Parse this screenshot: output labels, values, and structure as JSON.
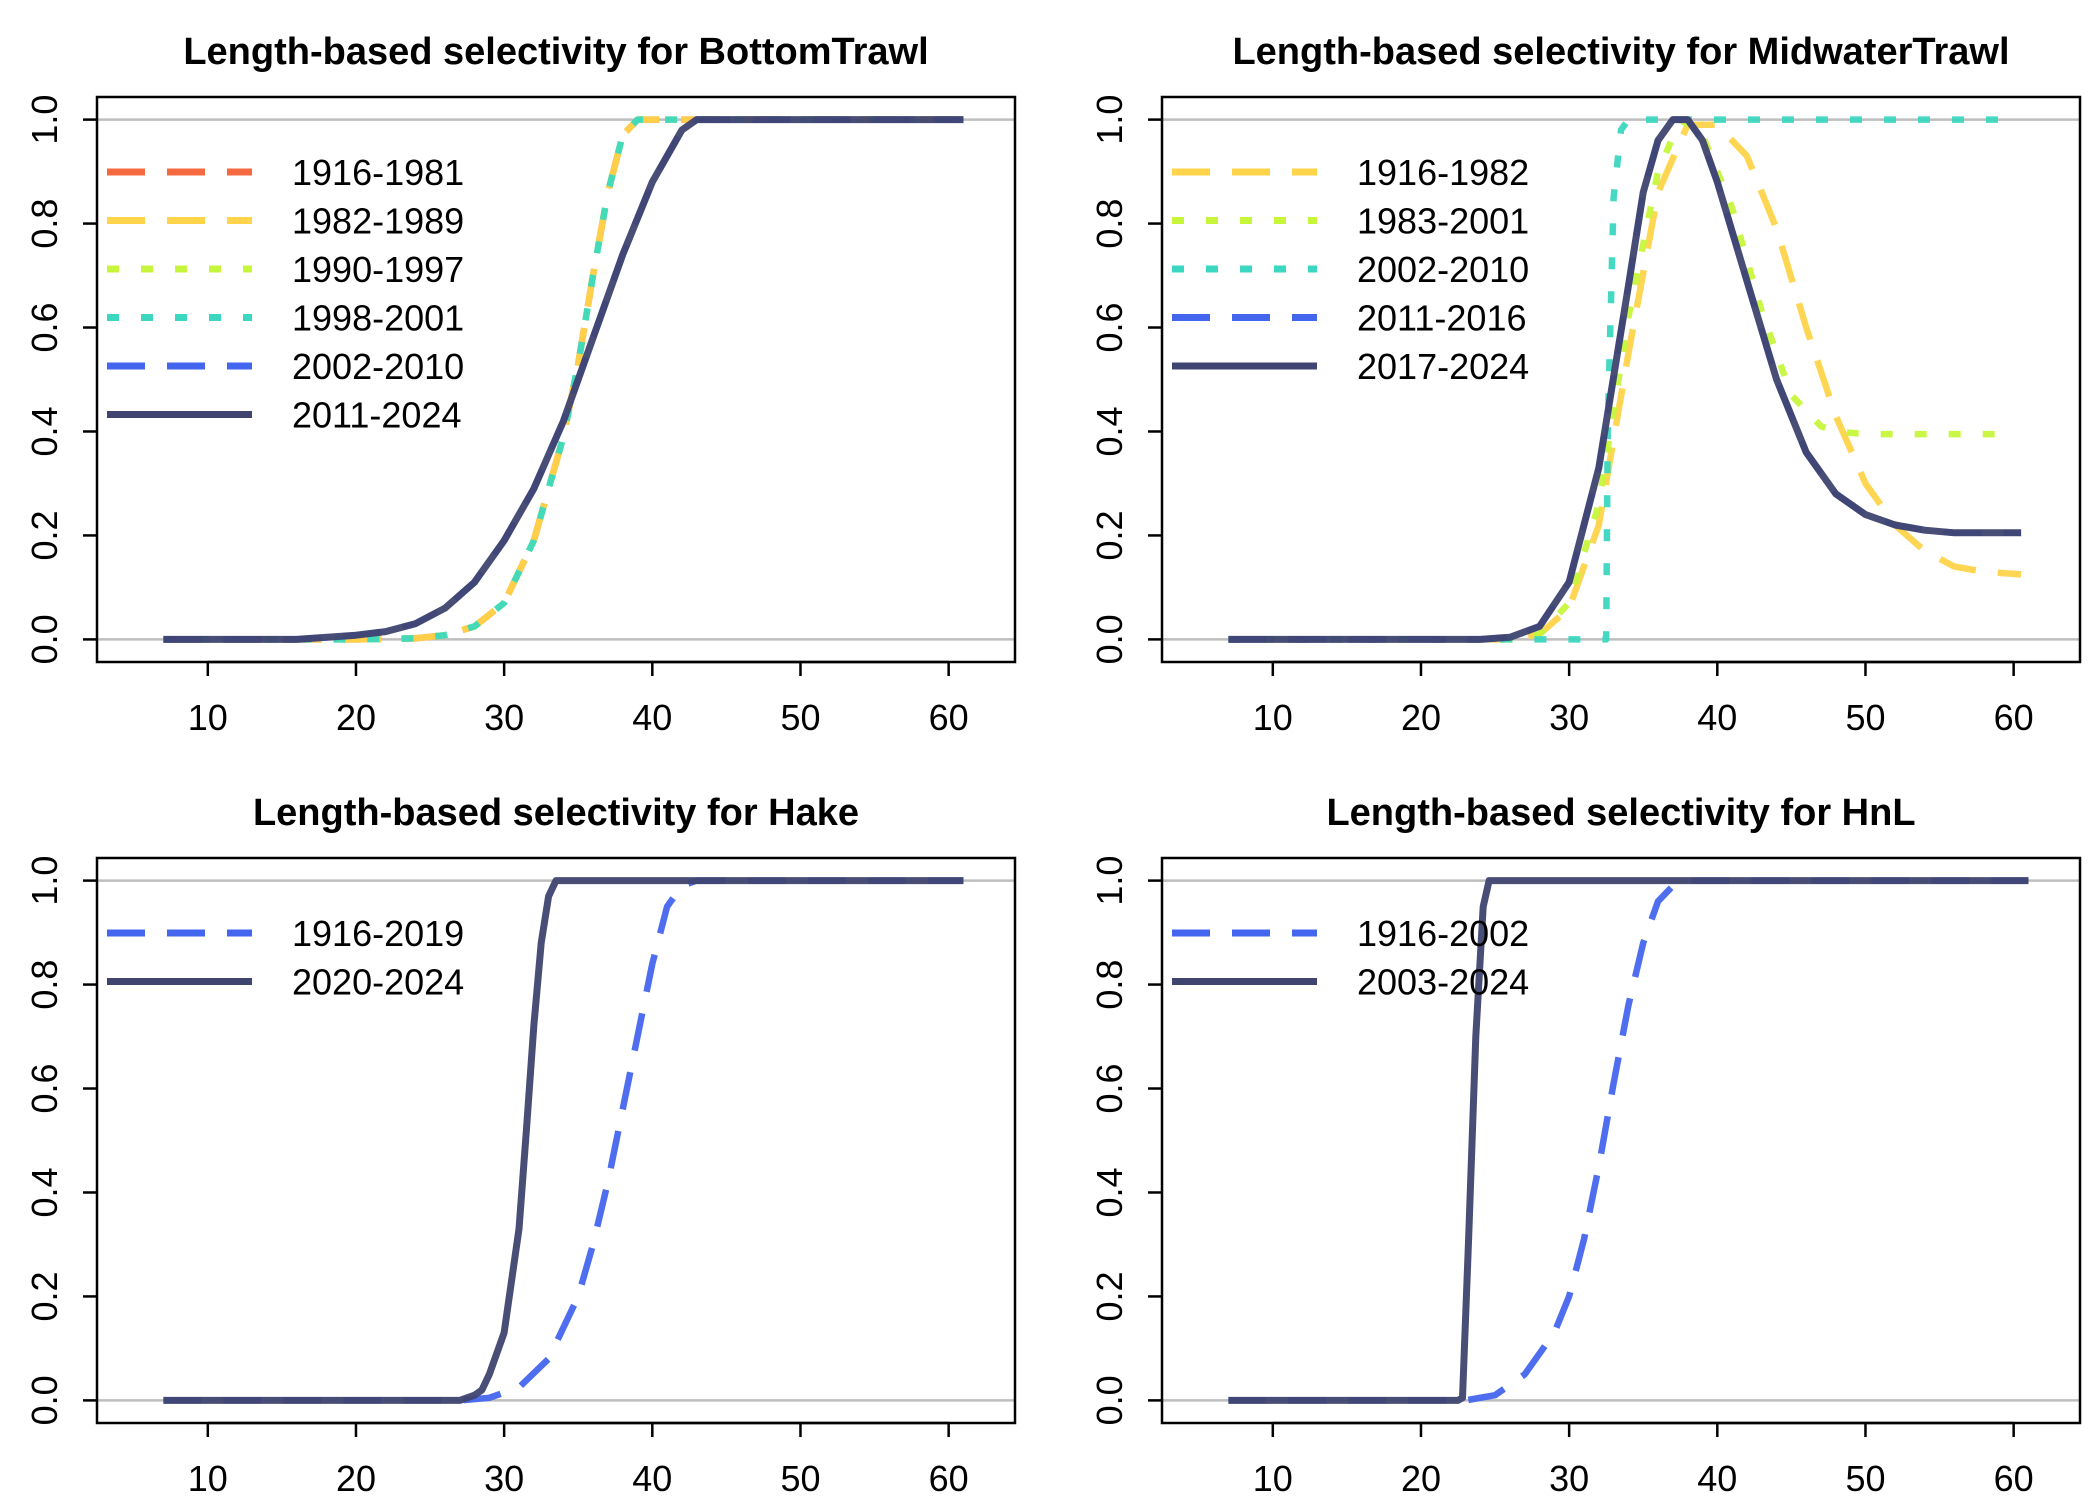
{
  "chart_data": [
    {
      "type": "line",
      "title": "Length-based selectivity for BottomTrawl",
      "xlabel": "",
      "ylabel": "",
      "xlim": [
        5,
        62
      ],
      "ylim": [
        0,
        1
      ],
      "xticks": [
        "10",
        "20",
        "30",
        "40",
        "50",
        "60"
      ],
      "yticks": [
        "0.0",
        "0.2",
        "0.4",
        "0.6",
        "0.8",
        "1.0"
      ],
      "grid": "horizontal reference lines at 0 and 1",
      "legend_position": "top-left",
      "series": [
        {
          "name": "1916-1981",
          "color": "#F4693F",
          "dash": "long",
          "x": [
            7,
            20,
            24,
            26,
            28,
            30,
            32,
            34,
            35,
            36,
            37,
            38,
            39,
            40,
            41,
            61
          ],
          "y": [
            0,
            0,
            0.002,
            0.008,
            0.025,
            0.07,
            0.19,
            0.39,
            0.53,
            0.7,
            0.86,
            0.97,
            1.0,
            1.0,
            1.0,
            1.0
          ]
        },
        {
          "name": "1982-1989",
          "color": "#FFD44A",
          "dash": "long",
          "x": [
            7,
            20,
            24,
            26,
            28,
            30,
            32,
            34,
            35,
            36,
            37,
            38,
            39,
            40,
            41,
            61
          ],
          "y": [
            0,
            0,
            0.002,
            0.008,
            0.025,
            0.07,
            0.19,
            0.39,
            0.53,
            0.7,
            0.86,
            0.97,
            1.0,
            1.0,
            1.0,
            1.0
          ]
        },
        {
          "name": "1990-1997",
          "color": "#C7F53B",
          "dash": "dot",
          "x": [
            7,
            20,
            24,
            26,
            28,
            30,
            32,
            34,
            35,
            36,
            37,
            38,
            39,
            40,
            41,
            61
          ],
          "y": [
            0,
            0,
            0.002,
            0.008,
            0.025,
            0.07,
            0.19,
            0.39,
            0.53,
            0.7,
            0.86,
            0.97,
            1.0,
            1.0,
            1.0,
            1.0
          ]
        },
        {
          "name": "1998-2001",
          "color": "#3BD7C0",
          "dash": "dot",
          "x": [
            7,
            20,
            24,
            26,
            28,
            30,
            32,
            34,
            35,
            36,
            37,
            38,
            39,
            40,
            41,
            61
          ],
          "y": [
            0,
            0,
            0.002,
            0.008,
            0.025,
            0.07,
            0.19,
            0.39,
            0.53,
            0.7,
            0.86,
            0.97,
            1.0,
            1.0,
            1.0,
            1.0
          ]
        },
        {
          "name": "2002-2010",
          "color": "#4466EE",
          "dash": "long",
          "x": [
            7,
            16,
            20,
            22,
            24,
            26,
            28,
            30,
            32,
            34,
            36,
            38,
            40,
            42,
            43,
            61
          ],
          "y": [
            0,
            0,
            0.008,
            0.015,
            0.03,
            0.06,
            0.11,
            0.19,
            0.29,
            0.42,
            0.58,
            0.74,
            0.88,
            0.98,
            1.0,
            1.0
          ]
        },
        {
          "name": "2011-2024",
          "color": "#3F4470",
          "dash": "solid",
          "x": [
            7,
            16,
            20,
            22,
            24,
            26,
            28,
            30,
            32,
            34,
            36,
            38,
            40,
            42,
            43,
            61
          ],
          "y": [
            0,
            0,
            0.008,
            0.015,
            0.03,
            0.06,
            0.11,
            0.19,
            0.29,
            0.42,
            0.58,
            0.74,
            0.88,
            0.98,
            1.0,
            1.0
          ]
        }
      ]
    },
    {
      "type": "line",
      "title": "Length-based selectivity for MidwaterTrawl",
      "xlabel": "",
      "ylabel": "",
      "xlim": [
        5,
        62
      ],
      "ylim": [
        0,
        1
      ],
      "xticks": [
        "10",
        "20",
        "30",
        "40",
        "50",
        "60"
      ],
      "yticks": [
        "0.0",
        "0.2",
        "0.4",
        "0.6",
        "0.8",
        "1.0"
      ],
      "grid": "horizontal reference lines at 0 and 1",
      "legend_position": "top-left",
      "series": [
        {
          "name": "1916-1982",
          "color": "#FFD44A",
          "dash": "long",
          "x": [
            7,
            26,
            28,
            30,
            32,
            34,
            36,
            38,
            40,
            42,
            44,
            46,
            48,
            50,
            52,
            54,
            56,
            58,
            60.5
          ],
          "y": [
            0,
            0,
            0.01,
            0.06,
            0.22,
            0.55,
            0.86,
            0.99,
            0.99,
            0.93,
            0.79,
            0.6,
            0.43,
            0.3,
            0.22,
            0.17,
            0.14,
            0.13,
            0.125
          ]
        },
        {
          "name": "1983-2001",
          "color": "#C7F53B",
          "dash": "dot",
          "x": [
            7,
            26,
            28,
            30,
            32,
            34,
            36,
            37.5,
            39,
            41,
            43,
            45,
            47,
            48,
            50,
            60
          ],
          "y": [
            0,
            0,
            0.01,
            0.07,
            0.26,
            0.62,
            0.9,
            1.0,
            0.97,
            0.83,
            0.63,
            0.47,
            0.41,
            0.4,
            0.395,
            0.395
          ]
        },
        {
          "name": "2002-2010",
          "color": "#3BD7C0",
          "dash": "dot",
          "x": [
            7,
            27.5,
            32.5,
            32.6,
            33,
            33.5,
            34,
            35,
            60
          ],
          "y": [
            0,
            0,
            0,
            0.4,
            0.85,
            0.98,
            1.0,
            1.0,
            1.0
          ]
        },
        {
          "name": "2011-2016",
          "color": "#4466EE",
          "dash": "long",
          "x": [
            7,
            24,
            26,
            28,
            30,
            32,
            34,
            35,
            36,
            37,
            38,
            39,
            40,
            42,
            44,
            46,
            48,
            50,
            52,
            54,
            56,
            58,
            60.5
          ],
          "y": [
            0,
            0,
            0.004,
            0.025,
            0.11,
            0.33,
            0.68,
            0.86,
            0.96,
            1.0,
            1.0,
            0.96,
            0.88,
            0.69,
            0.5,
            0.36,
            0.28,
            0.24,
            0.22,
            0.21,
            0.205,
            0.205,
            0.205
          ]
        },
        {
          "name": "2017-2024",
          "color": "#3F4470",
          "dash": "solid",
          "x": [
            7,
            24,
            26,
            28,
            30,
            32,
            34,
            35,
            36,
            37,
            38,
            39,
            40,
            42,
            44,
            46,
            48,
            50,
            52,
            54,
            56,
            58,
            60.5
          ],
          "y": [
            0,
            0,
            0.004,
            0.025,
            0.11,
            0.33,
            0.68,
            0.86,
            0.96,
            1.0,
            1.0,
            0.96,
            0.88,
            0.69,
            0.5,
            0.36,
            0.28,
            0.24,
            0.22,
            0.21,
            0.205,
            0.205,
            0.205
          ]
        }
      ]
    },
    {
      "type": "line",
      "title": "Length-based selectivity for Hake",
      "xlabel": "",
      "ylabel": "",
      "xlim": [
        5,
        62
      ],
      "ylim": [
        0,
        1
      ],
      "xticks": [
        "10",
        "20",
        "30",
        "40",
        "50",
        "60"
      ],
      "yticks": [
        "0.0",
        "0.2",
        "0.4",
        "0.6",
        "0.8",
        "1.0"
      ],
      "grid": "horizontal reference lines at 0 and 1",
      "legend_position": "top-left",
      "series": [
        {
          "name": "1916-2019",
          "color": "#4466EE",
          "dash": "long",
          "x": [
            7,
            27,
            29,
            31,
            33,
            35,
            36,
            37,
            38,
            39,
            40,
            41,
            42,
            43,
            61
          ],
          "y": [
            0,
            0,
            0.005,
            0.025,
            0.08,
            0.2,
            0.3,
            0.42,
            0.56,
            0.7,
            0.84,
            0.95,
            0.99,
            1.0,
            1.0
          ]
        },
        {
          "name": "2020-2024",
          "color": "#3F4470",
          "dash": "solid",
          "x": [
            7,
            27,
            28,
            28.5,
            29,
            30,
            31,
            31.5,
            32,
            32.5,
            33,
            33.5,
            61
          ],
          "y": [
            0,
            0,
            0.01,
            0.02,
            0.05,
            0.13,
            0.33,
            0.52,
            0.72,
            0.88,
            0.97,
            1.0,
            1.0
          ]
        }
      ]
    },
    {
      "type": "line",
      "title": "Length-based selectivity for HnL",
      "xlabel": "",
      "ylabel": "",
      "xlim": [
        5,
        62
      ],
      "ylim": [
        0,
        1
      ],
      "xticks": [
        "10",
        "20",
        "30",
        "40",
        "50",
        "60"
      ],
      "yticks": [
        "0.0",
        "0.2",
        "0.4",
        "0.6",
        "0.8",
        "1.0"
      ],
      "grid": "horizontal reference lines at 0 and 1",
      "legend_position": "top-left",
      "series": [
        {
          "name": "1916-2002",
          "color": "#4466EE",
          "dash": "long",
          "x": [
            7,
            23,
            25,
            27,
            29,
            30,
            31,
            32,
            33,
            34,
            35,
            36,
            37,
            38,
            61
          ],
          "y": [
            0,
            0,
            0.01,
            0.05,
            0.13,
            0.2,
            0.31,
            0.45,
            0.61,
            0.76,
            0.88,
            0.96,
            0.99,
            1.0,
            1.0
          ]
        },
        {
          "name": "2003-2024",
          "color": "#3F4470",
          "dash": "solid",
          "x": [
            7,
            22.5,
            22.8,
            23.2,
            23.7,
            24.2,
            24.6,
            61
          ],
          "y": [
            0,
            0,
            0.005,
            0.3,
            0.7,
            0.95,
            1.0,
            1.0
          ]
        }
      ]
    }
  ]
}
